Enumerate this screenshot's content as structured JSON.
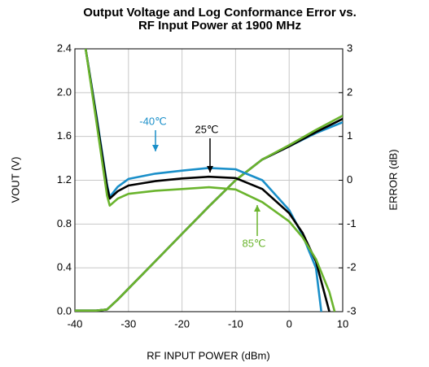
{
  "chart_data": {
    "type": "line",
    "title": [
      "Output Voltage and Log Conformance Error vs.",
      "RF Input Power at 1900 MHz"
    ],
    "x_label": "RF INPUT POWER (dBm)",
    "y_label": "VOUT (V)",
    "y2_label": "ERROR (dB)",
    "xlim": [
      -40,
      10
    ],
    "xticks": [
      -40,
      -30,
      -20,
      -10,
      0,
      10
    ],
    "ylim": [
      0,
      2.4
    ],
    "yticks": [
      {
        "value": 0,
        "label": "0.0"
      },
      0.4,
      0.8,
      1.2,
      1.6,
      {
        "value": 2,
        "label": "2.0"
      },
      2.4
    ],
    "y2lim": [
      -3,
      3
    ],
    "y2ticks": [
      -3,
      -2,
      -1,
      0,
      1,
      2,
      3
    ],
    "grid": true,
    "series": [
      {
        "color": "#1a8fc9",
        "x": [
          -40,
          -36,
          -34,
          -32,
          -30,
          -25,
          -20,
          -15,
          -10,
          -5,
          0,
          5,
          10
        ],
        "values": [
          0.01,
          0.01,
          0.02,
          0.11,
          0.21,
          0.46,
          0.71,
          0.96,
          1.2,
          1.39,
          1.51,
          1.63,
          1.73
        ]
      },
      {
        "color": "#000000",
        "x": [
          -40,
          -36,
          -34,
          -32,
          -30,
          -25,
          -20,
          -15,
          -10,
          -5,
          0,
          5,
          10
        ],
        "values": [
          0.01,
          0.01,
          0.02,
          0.11,
          0.21,
          0.46,
          0.71,
          0.96,
          1.2,
          1.39,
          1.51,
          1.64,
          1.76
        ]
      },
      {
        "color": "#6ab42d",
        "x": [
          -40,
          -36,
          -34,
          -32,
          -30,
          -25,
          -20,
          -15,
          -10,
          -5,
          0,
          5,
          10
        ],
        "values": [
          0.01,
          0.01,
          0.02,
          0.11,
          0.21,
          0.46,
          0.71,
          0.96,
          1.2,
          1.39,
          1.52,
          1.66,
          1.79
        ]
      },
      {
        "color": "#1a8fc9",
        "axis": "y2",
        "x": [
          -38,
          -36,
          -34,
          -33.5,
          -32,
          -30,
          -25,
          -20,
          -15,
          -10,
          -5,
          0,
          2.5,
          5,
          6
        ],
        "values": [
          3,
          1.5,
          -0.1,
          -0.38,
          -0.15,
          0.03,
          0.15,
          0.22,
          0.28,
          0.25,
          0,
          -0.68,
          -1.25,
          -2.0,
          -3
        ]
      },
      {
        "color": "#000000",
        "axis": "y2",
        "x": [
          -38,
          -36,
          -34,
          -33.5,
          -32,
          -30,
          -25,
          -20,
          -15,
          -10,
          -5,
          0,
          2.5,
          5,
          7.5
        ],
        "values": [
          3,
          1.45,
          -0.15,
          -0.42,
          -0.25,
          -0.12,
          -0.02,
          0.04,
          0.08,
          0.05,
          -0.2,
          -0.75,
          -1.2,
          -1.85,
          -3
        ]
      },
      {
        "color": "#6ab42d",
        "axis": "y2",
        "x": [
          -38,
          -36,
          -34,
          -33.5,
          -32,
          -30,
          -25,
          -20,
          -15,
          -10,
          -5,
          0,
          2.5,
          5,
          7.5,
          8.5
        ],
        "values": [
          3,
          1.35,
          -0.35,
          -0.58,
          -0.42,
          -0.31,
          -0.24,
          -0.2,
          -0.16,
          -0.21,
          -0.5,
          -0.94,
          -1.3,
          -1.8,
          -2.55,
          -3
        ]
      }
    ],
    "annotations": [
      {
        "text": "-40℃",
        "color": "#1a8fc9"
      },
      {
        "text": "25℃",
        "color": "#000000"
      },
      {
        "text": "85℃",
        "color": "#6ab42d"
      }
    ]
  }
}
